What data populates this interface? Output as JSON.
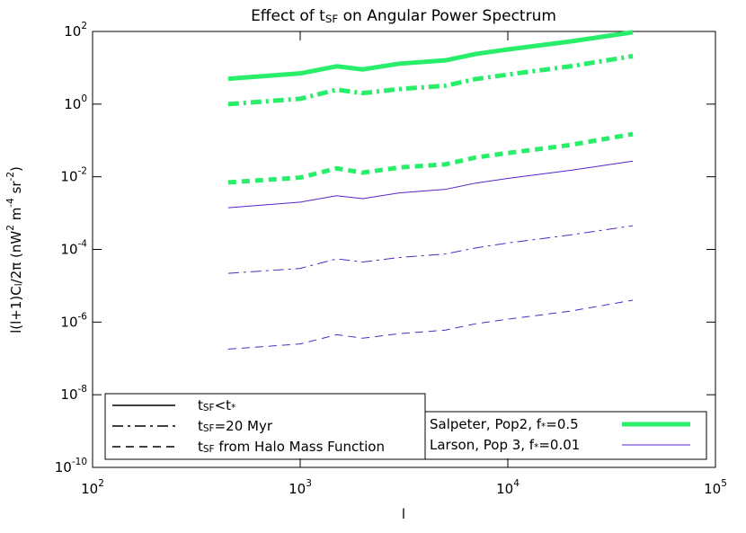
{
  "chart_data": {
    "type": "line",
    "title": "Effect of t_{SF} on Angular Power Spectrum",
    "x_label": "l",
    "y_label": "l(l+1)C_{l}/2π  (nW^{2} m^{-4} sr^{-2})",
    "x": [
      450,
      1000,
      1500,
      2000,
      3000,
      5000,
      7000,
      10000,
      20000,
      40000
    ],
    "log_x": true,
    "log_y": true,
    "xlim": [
      100,
      100000
    ],
    "xticks": [
      {
        "value": 100,
        "label": "10^{2}"
      },
      {
        "value": 1000,
        "label": "10^{3}"
      },
      {
        "value": 10000,
        "label": "10^{4}"
      },
      {
        "value": 100000,
        "label": "10^{5}"
      }
    ],
    "ylim": [
      1e-10,
      100
    ],
    "yticks": [
      {
        "value": 1e-10,
        "label": "10^{-10}"
      },
      {
        "value": 1e-08,
        "label": "10^{-8}"
      },
      {
        "value": 1e-06,
        "label": "10^{-6}"
      },
      {
        "value": 0.0001,
        "label": "10^{-4}"
      },
      {
        "value": 0.01,
        "label": "10^{-2}"
      },
      {
        "value": 1,
        "label": "10^{0}"
      },
      {
        "value": 100,
        "label": "10^{2}"
      }
    ],
    "series": [
      {
        "color": "#28ee6a",
        "width": 5,
        "dash": "solid",
        "values": [
          5,
          7,
          11,
          9,
          13,
          16,
          24,
          32,
          53,
          95
        ]
      },
      {
        "color": "#28ee6a",
        "width": 5,
        "dash": "dashdot",
        "values": [
          1.0,
          1.4,
          2.5,
          2,
          2.6,
          3.2,
          4.9,
          6.5,
          11,
          21
        ]
      },
      {
        "color": "#28ee6a",
        "width": 5,
        "dash": "dashed",
        "values": [
          0.007,
          0.0095,
          0.017,
          0.013,
          0.018,
          0.022,
          0.034,
          0.045,
          0.075,
          0.15
        ]
      },
      {
        "color": "#5526c8",
        "width": 1,
        "dash": "solid",
        "values": [
          0.0014,
          0.002,
          0.003,
          0.0025,
          0.0036,
          0.0045,
          0.0067,
          0.009,
          0.015,
          0.027
        ]
      },
      {
        "color": "#5526c8",
        "width": 1,
        "dash": "dashdot",
        "values": [
          2.2e-05,
          3e-05,
          5.5e-05,
          4.5e-05,
          6e-05,
          7.5e-05,
          0.00011,
          0.00015,
          0.00025,
          0.00045
        ]
      },
      {
        "color": "#5526c8",
        "width": 1,
        "dash": "dashed",
        "values": [
          1.8e-07,
          2.5e-07,
          4.5e-07,
          3.6e-07,
          4.8e-07,
          6e-07,
          9e-07,
          1.2e-06,
          2e-06,
          4e-06
        ]
      }
    ],
    "style_legend": [
      {
        "label": "t_{SF}<t_{*}",
        "dash": "solid"
      },
      {
        "label": "t_{SF}=20 Myr",
        "dash": "dashdot"
      },
      {
        "label": "t_{SF} from Halo Mass Function",
        "dash": "dashed"
      }
    ],
    "color_legend": [
      {
        "label": "Salpeter, Pop2, f_{*}=0.5",
        "color": "#28ee6a",
        "width": 5
      },
      {
        "label": "Larson, Pop 3, f_{*}=0.01",
        "color": "#5526c8",
        "width": 1
      }
    ]
  }
}
